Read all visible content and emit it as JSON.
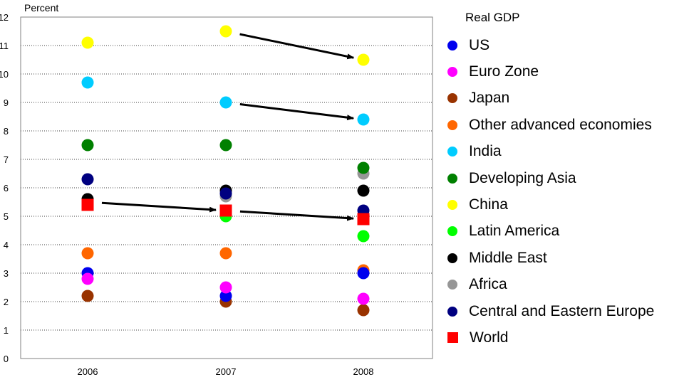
{
  "chart_data": {
    "type": "scatter",
    "title": "",
    "ylabel": "Percent",
    "xlabel": "",
    "ylim": [
      0,
      12
    ],
    "yticks": [
      "0",
      "1",
      "2",
      "3",
      "4",
      "5",
      "6",
      "7",
      "8",
      "9",
      "10",
      "11",
      "12"
    ],
    "categories": [
      "2006",
      "2007",
      "2008"
    ],
    "grid": "horizontal dotted",
    "legend_title": "Real GDP",
    "legend_position": "right",
    "series": [
      {
        "name": "US",
        "color": "#0000ee",
        "marker": "circle",
        "values": [
          3.0,
          2.2,
          3.0
        ]
      },
      {
        "name": "Euro Zone",
        "color": "#ff00ff",
        "marker": "circle",
        "values": [
          2.8,
          2.5,
          2.1
        ]
      },
      {
        "name": "Japan",
        "color": "#993300",
        "marker": "circle",
        "values": [
          2.2,
          2.0,
          1.7
        ]
      },
      {
        "name": "Other advanced economies",
        "color": "#ff6600",
        "marker": "circle",
        "values": [
          3.7,
          3.7,
          3.1
        ]
      },
      {
        "name": "India",
        "color": "#00ccff",
        "marker": "circle",
        "values": [
          9.7,
          9.0,
          8.4
        ]
      },
      {
        "name": "Developing Asia",
        "color": "#008000",
        "marker": "circle",
        "values": [
          7.5,
          7.5,
          6.7
        ]
      },
      {
        "name": "China",
        "color": "#ffff00",
        "marker": "circle",
        "values": [
          11.1,
          11.5,
          10.5
        ]
      },
      {
        "name": "Latin America",
        "color": "#00ff00",
        "marker": "circle",
        "values": [
          5.5,
          5.0,
          4.3
        ]
      },
      {
        "name": "Middle East",
        "color": "#000000",
        "marker": "circle",
        "values": [
          5.6,
          5.9,
          5.9
        ]
      },
      {
        "name": "Africa",
        "color": "#969696",
        "marker": "circle",
        "values": [
          5.6,
          5.7,
          6.5
        ]
      },
      {
        "name": "Central and Eastern Europe",
        "color": "#000080",
        "marker": "circle",
        "values": [
          6.3,
          5.8,
          5.2
        ]
      },
      {
        "name": "World",
        "color": "#ff0000",
        "marker": "square",
        "values": [
          5.4,
          5.2,
          4.9
        ]
      }
    ],
    "arrows": [
      {
        "from": [
          "2007",
          11.5
        ],
        "to": [
          "2008",
          10.5
        ]
      },
      {
        "from": [
          "2007",
          9.0
        ],
        "to": [
          "2008",
          8.4
        ]
      },
      {
        "from": [
          "2006",
          5.5
        ],
        "to": [
          "2007",
          5.2
        ]
      },
      {
        "from": [
          "2007",
          5.2
        ],
        "to": [
          "2008",
          4.9
        ]
      }
    ]
  }
}
